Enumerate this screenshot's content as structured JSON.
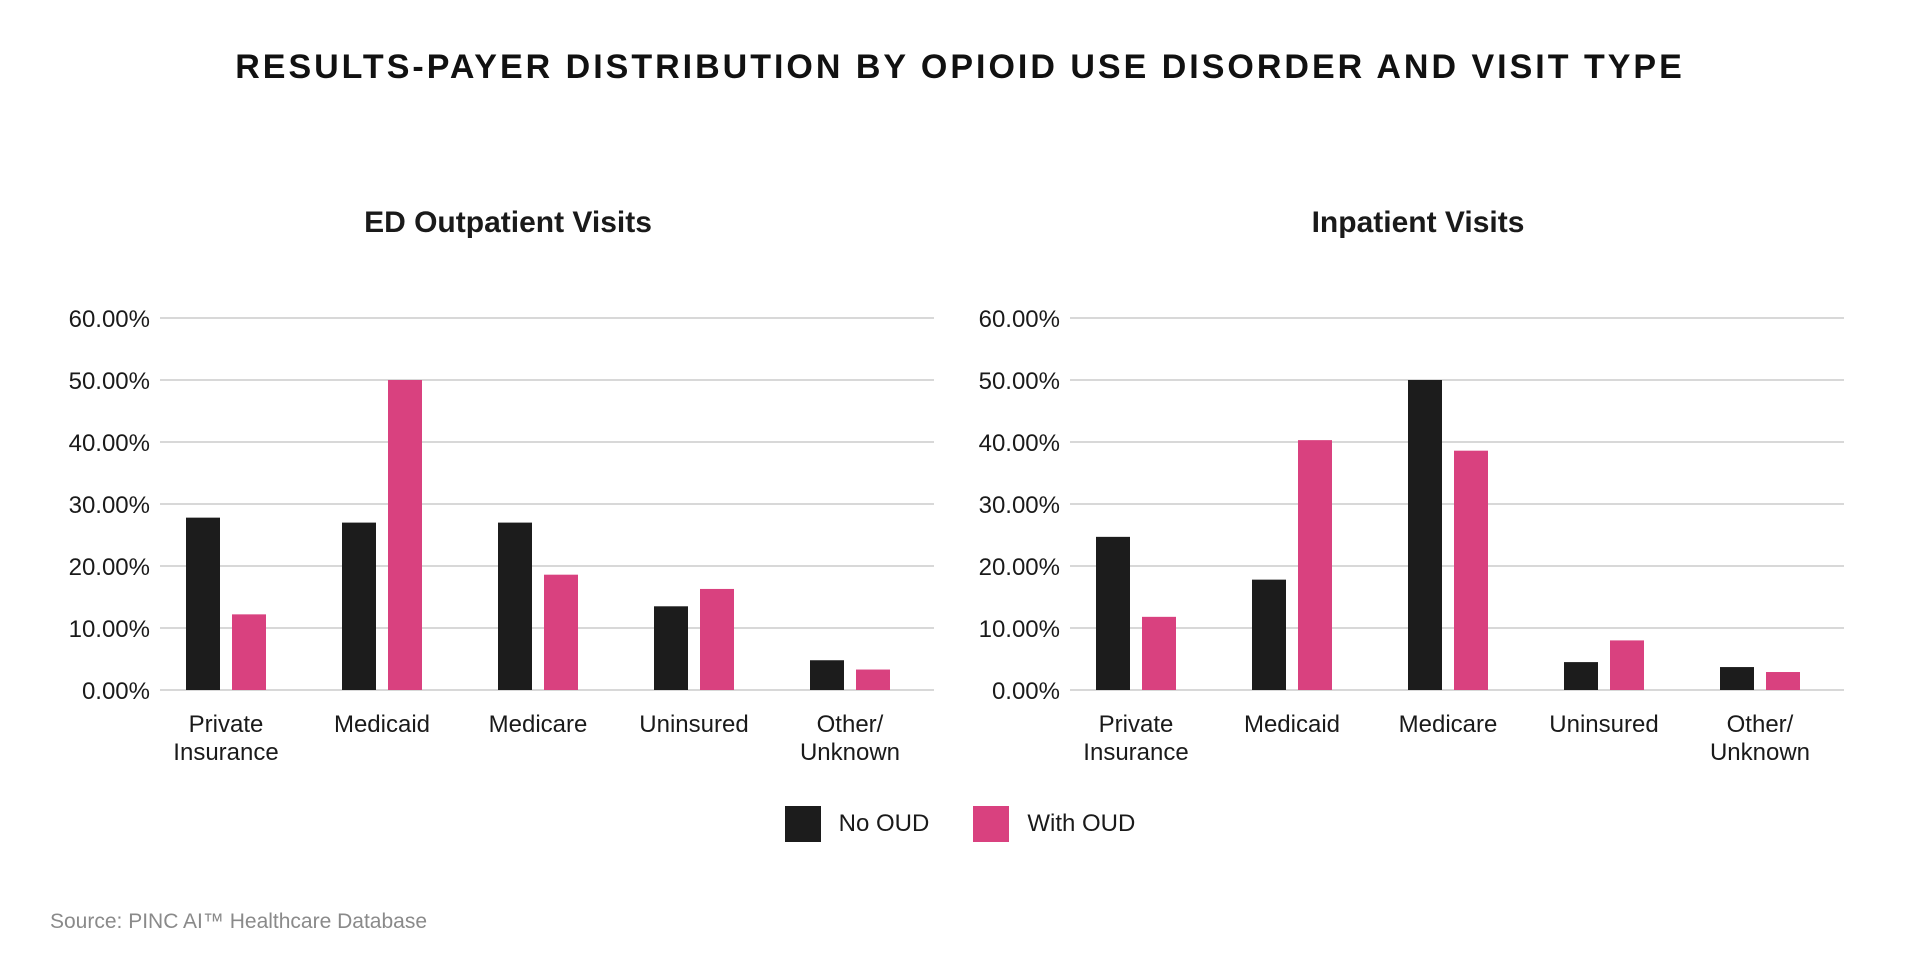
{
  "title": "RESULTS-PAYER DISTRIBUTION BY OPIOID USE DISORDER AND VISIT TYPE",
  "source": "Source: PINC AI™ Healthcare Database",
  "colors": {
    "no_oud": "#1c1c1c",
    "with_oud": "#d9417f",
    "grid": "#cccccc"
  },
  "legend": [
    {
      "label": "No OUD",
      "color": "#1c1c1c"
    },
    {
      "label": "With OUD",
      "color": "#d9417f"
    }
  ],
  "chart_data": [
    {
      "type": "bar",
      "title": "ED Outpatient Visits",
      "categories": [
        [
          "Private",
          "Insurance"
        ],
        [
          "Medicaid"
        ],
        [
          "Medicare"
        ],
        [
          "Uninsured"
        ],
        [
          "Other/",
          "Unknown"
        ]
      ],
      "series": [
        {
          "name": "No OUD",
          "color": "#1c1c1c",
          "values": [
            27.8,
            27.0,
            27.0,
            13.5,
            4.8
          ]
        },
        {
          "name": "With OUD",
          "color": "#d9417f",
          "values": [
            12.2,
            50.0,
            18.6,
            16.3,
            3.3
          ]
        }
      ],
      "yticks": [
        "0.00%",
        "10.00%",
        "20.00%",
        "30.00%",
        "40.00%",
        "50.00%",
        "60.00%"
      ],
      "ylim": [
        0,
        60
      ],
      "grid": true
    },
    {
      "type": "bar",
      "title": "Inpatient Visits",
      "categories": [
        [
          "Private",
          "Insurance"
        ],
        [
          "Medicaid"
        ],
        [
          "Medicare"
        ],
        [
          "Uninsured"
        ],
        [
          "Other/",
          "Unknown"
        ]
      ],
      "series": [
        {
          "name": "No OUD",
          "color": "#1c1c1c",
          "values": [
            24.7,
            17.8,
            50.0,
            4.5,
            3.7
          ]
        },
        {
          "name": "With OUD",
          "color": "#d9417f",
          "values": [
            11.8,
            40.3,
            38.6,
            8.0,
            2.9
          ]
        }
      ],
      "yticks": [
        "0.00%",
        "10.00%",
        "20.00%",
        "30.00%",
        "40.00%",
        "50.00%",
        "60.00%"
      ],
      "ylim": [
        0,
        60
      ],
      "grid": true
    }
  ]
}
